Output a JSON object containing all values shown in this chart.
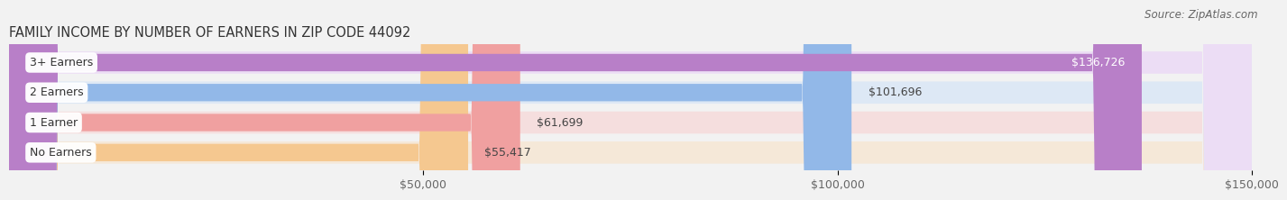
{
  "title": "FAMILY INCOME BY NUMBER OF EARNERS IN ZIP CODE 44092",
  "source": "Source: ZipAtlas.com",
  "categories": [
    "No Earners",
    "1 Earner",
    "2 Earners",
    "3+ Earners"
  ],
  "values": [
    55417,
    61699,
    101696,
    136726
  ],
  "labels": [
    "$55,417",
    "$61,699",
    "$101,696",
    "$136,726"
  ],
  "bar_colors": [
    "#f5c890",
    "#f0a0a0",
    "#92b8e8",
    "#b87fc8"
  ],
  "bar_bg_colors": [
    "#f5e8d8",
    "#f5dede",
    "#dde8f5",
    "#ecddf5"
  ],
  "label_colors": [
    "#444444",
    "#444444",
    "#444444",
    "#ffffff"
  ],
  "xmin": 0,
  "xmax": 150000,
  "xticks": [
    50000,
    100000,
    150000
  ],
  "xticklabels": [
    "$50,000",
    "$100,000",
    "$150,000"
  ],
  "title_fontsize": 10.5,
  "source_fontsize": 8.5,
  "label_fontsize": 9,
  "bar_label_fontsize": 9,
  "tick_fontsize": 9,
  "figwidth": 14.06,
  "figheight": 2.33,
  "background_color": "#f2f2f2"
}
